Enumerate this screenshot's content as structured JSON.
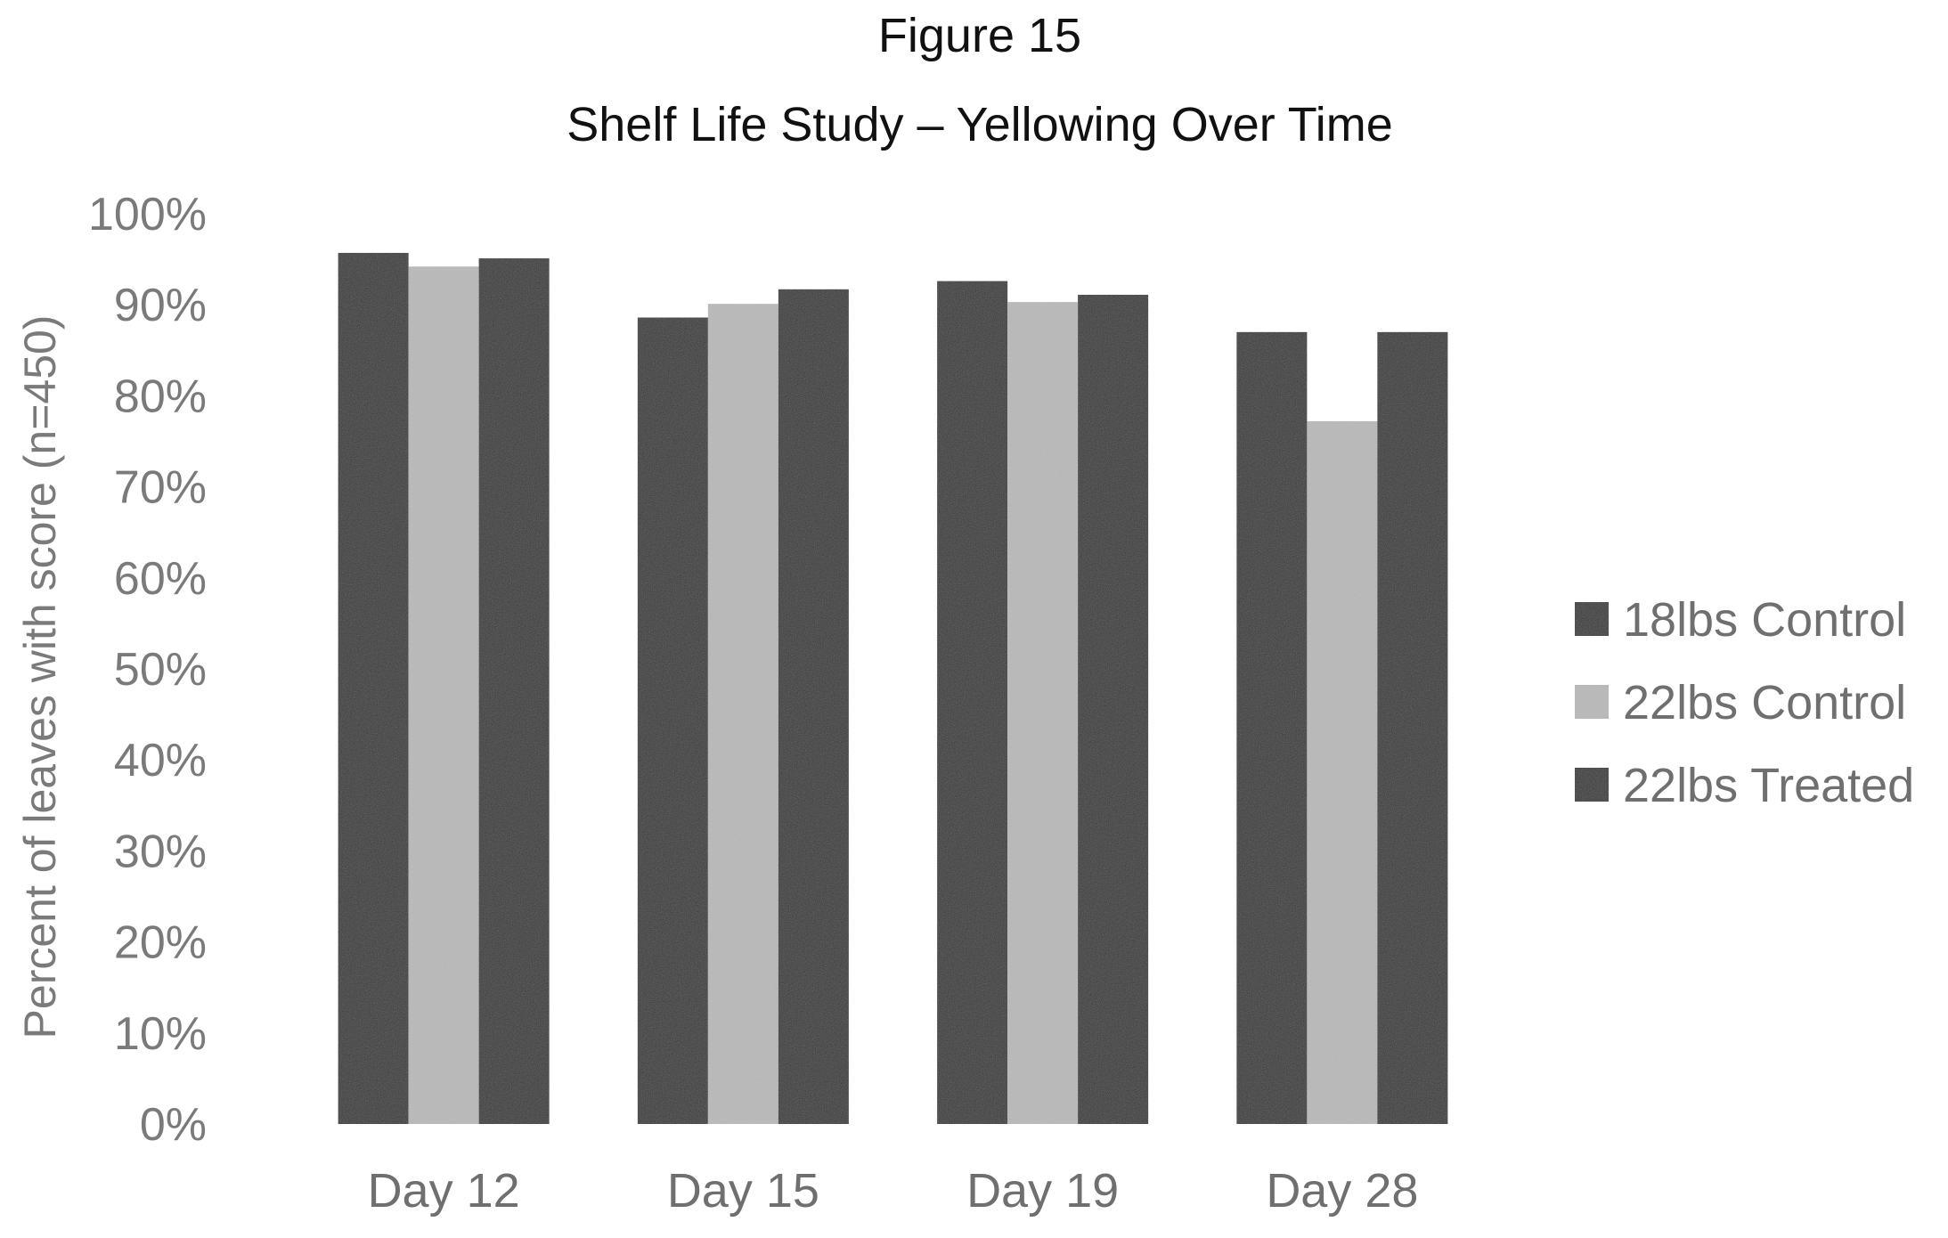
{
  "chart_data": {
    "type": "bar",
    "title": "Figure 15",
    "subtitle": "Shelf Life Study – Yellowing Over Time",
    "xlabel": "",
    "ylabel": "Percent of leaves with score (n=450)",
    "categories": [
      "Day 12",
      "Day 15",
      "Day 19",
      "Day 28"
    ],
    "series": [
      {
        "name": "18lbs Control",
        "color": "#3a3a3a",
        "values": [
          0.957,
          0.886,
          0.926,
          0.87
        ]
      },
      {
        "name": "22lbs Control",
        "color": "#b9b9b9",
        "values": [
          0.942,
          0.901,
          0.903,
          0.772
        ]
      },
      {
        "name": "22lbs Treated",
        "color": "#3a3a3a",
        "values": [
          0.951,
          0.917,
          0.911,
          0.87
        ]
      }
    ],
    "ylim": [
      0,
      1
    ],
    "yticks": [
      "0%",
      "10%",
      "20%",
      "30%",
      "40%",
      "50%",
      "60%",
      "70%",
      "80%",
      "90%",
      "100%"
    ],
    "grid": false,
    "legend_position": "right"
  }
}
